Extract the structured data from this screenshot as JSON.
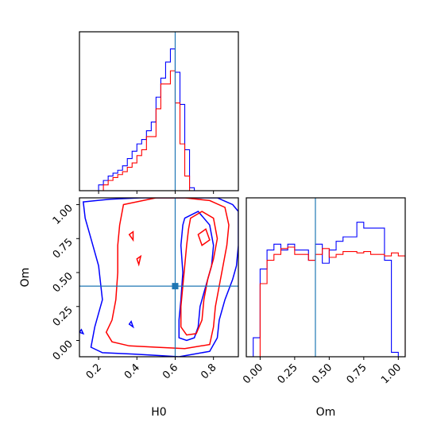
{
  "chart_data": {
    "type": "corner",
    "parameters": [
      "H0",
      "Om"
    ],
    "truth": {
      "H0": 0.6,
      "Om": 0.4
    },
    "colors": {
      "series_blue": "#0000ff",
      "series_red": "#ff0000",
      "truth_line": "#1f77b4",
      "frame": "#000000"
    },
    "x_ticks": {
      "H0": {
        "values": [
          0.2,
          0.4,
          0.6,
          0.8
        ],
        "labels": [
          "0.2",
          "0.4",
          "0.6",
          "0.8"
        ]
      },
      "Om": {
        "values": [
          0.0,
          0.25,
          0.5,
          0.75,
          1.0
        ],
        "labels": [
          "0.00",
          "0.25",
          "0.50",
          "0.75",
          "1.00"
        ]
      }
    },
    "y_ticks": {
      "Om": {
        "values": [
          0.0,
          0.25,
          0.5,
          0.75,
          1.0
        ],
        "labels": [
          "0.00",
          "0.25",
          "0.50",
          "0.75",
          "1.00"
        ]
      }
    },
    "xlabels": {
      "H0": "H0",
      "Om": "Om"
    },
    "ylabels": {
      "Om": "Om"
    },
    "ranges": {
      "H0": [
        0.1,
        0.93
      ],
      "Om": [
        -0.12,
        1.05
      ]
    },
    "charts": [
      {
        "panel": "H0 marginal",
        "type": "step-histogram",
        "xlim": [
          0.1,
          0.93
        ],
        "bin_width": 0.025,
        "series": [
          {
            "color": "#0000ff",
            "edges_start": 0.2,
            "values": [
              0.04,
              0.07,
              0.1,
              0.12,
              0.14,
              0.17,
              0.22,
              0.27,
              0.32,
              0.35,
              0.41,
              0.47,
              0.64,
              0.77,
              0.88,
              0.97,
              0.81,
              0.59,
              0.28,
              0.02
            ]
          },
          {
            "color": "#ff0000",
            "edges_start": 0.225,
            "values": [
              0.04,
              0.07,
              0.09,
              0.11,
              0.13,
              0.16,
              0.19,
              0.24,
              0.28,
              0.37,
              0.37,
              0.56,
              0.73,
              0.73,
              0.82,
              0.6,
              0.32,
              0.1
            ]
          }
        ]
      },
      {
        "panel": "Om marginal",
        "type": "step-histogram",
        "xlim": [
          -0.1,
          1.05
        ],
        "bin_width": 0.05,
        "series": [
          {
            "color": "#0000ff",
            "edges_start": -0.05,
            "values": [
              0.13,
              0.6,
              0.73,
              0.77,
              0.73,
              0.77,
              0.73,
              0.73,
              0.66,
              0.77,
              0.64,
              0.73,
              0.79,
              0.82,
              0.82,
              0.92,
              0.88,
              0.88,
              0.88,
              0.66,
              0.03
            ]
          },
          {
            "color": "#ff0000",
            "edges_start": 0.0,
            "values": [
              0.5,
              0.66,
              0.7,
              0.74,
              0.75,
              0.7,
              0.7,
              0.66,
              0.7,
              0.74,
              0.68,
              0.7,
              0.72,
              0.72,
              0.71,
              0.72,
              0.7,
              0.7,
              0.69,
              0.71,
              0.69
            ]
          }
        ]
      },
      {
        "panel": "H0 vs Om joint",
        "type": "contour",
        "xlim": [
          0.1,
          0.93
        ],
        "ylim": [
          -0.12,
          1.05
        ],
        "series": [
          {
            "color": "#0000ff",
            "contours": [
              [
                [
                  0.12,
                  1.02
                ],
                [
                  0.26,
                  1.04
                ],
                [
                  0.42,
                  1.05
                ],
                [
                  0.58,
                  1.05
                ],
                [
                  0.72,
                  1.05
                ],
                [
                  0.82,
                  1.05
                ],
                [
                  0.9,
                  1.0
                ],
                [
                  0.93,
                  0.95
                ],
                [
                  0.93,
                  0.7
                ],
                [
                  0.92,
                  0.55
                ],
                [
                  0.9,
                  0.45
                ],
                [
                  0.86,
                  0.3
                ],
                [
                  0.83,
                  0.15
                ],
                [
                  0.82,
                  0.02
                ],
                [
                  0.78,
                  -0.08
                ],
                [
                  0.62,
                  -0.12
                ],
                [
                  0.5,
                  -0.11
                ],
                [
                  0.38,
                  -0.1
                ],
                [
                  0.22,
                  -0.09
                ],
                [
                  0.16,
                  -0.05
                ],
                [
                  0.18,
                  0.1
                ],
                [
                  0.22,
                  0.3
                ],
                [
                  0.2,
                  0.55
                ],
                [
                  0.16,
                  0.75
                ],
                [
                  0.13,
                  0.9
                ],
                [
                  0.12,
                  1.02
                ]
              ],
              [
                [
                  0.65,
                  0.9
                ],
                [
                  0.72,
                  0.95
                ],
                [
                  0.78,
                  0.85
                ],
                [
                  0.8,
                  0.7
                ],
                [
                  0.79,
                  0.55
                ],
                [
                  0.76,
                  0.4
                ],
                [
                  0.73,
                  0.25
                ],
                [
                  0.72,
                  0.1
                ],
                [
                  0.7,
                  0.02
                ],
                [
                  0.66,
                  0.0
                ],
                [
                  0.62,
                  0.02
                ],
                [
                  0.62,
                  0.15
                ],
                [
                  0.63,
                  0.3
                ],
                [
                  0.64,
                  0.5
                ],
                [
                  0.63,
                  0.7
                ],
                [
                  0.64,
                  0.85
                ],
                [
                  0.65,
                  0.9
                ]
              ],
              [
                [
                  0.1,
                  0.06
                ],
                [
                  0.12,
                  0.05
                ],
                [
                  0.11,
                  0.08
                ],
                [
                  0.1,
                  0.06
                ]
              ],
              [
                [
                  0.36,
                  0.12
                ],
                [
                  0.38,
                  0.1
                ],
                [
                  0.37,
                  0.14
                ],
                [
                  0.36,
                  0.12
                ]
              ]
            ]
          },
          {
            "color": "#ff0000",
            "contours": [
              [
                [
                  0.33,
                  1.0
                ],
                [
                  0.5,
                  1.05
                ],
                [
                  0.65,
                  1.05
                ],
                [
                  0.78,
                  1.03
                ],
                [
                  0.86,
                  0.98
                ],
                [
                  0.88,
                  0.85
                ],
                [
                  0.87,
                  0.7
                ],
                [
                  0.85,
                  0.55
                ],
                [
                  0.83,
                  0.4
                ],
                [
                  0.81,
                  0.25
                ],
                [
                  0.8,
                  0.1
                ],
                [
                  0.78,
                  -0.03
                ],
                [
                  0.65,
                  -0.06
                ],
                [
                  0.5,
                  -0.05
                ],
                [
                  0.36,
                  -0.04
                ],
                [
                  0.27,
                  -0.01
                ],
                [
                  0.24,
                  0.06
                ],
                [
                  0.27,
                  0.15
                ],
                [
                  0.29,
                  0.3
                ],
                [
                  0.3,
                  0.5
                ],
                [
                  0.3,
                  0.7
                ],
                [
                  0.31,
                  0.85
                ],
                [
                  0.33,
                  1.0
                ]
              ],
              [
                [
                  0.68,
                  0.9
                ],
                [
                  0.74,
                  0.95
                ],
                [
                  0.8,
                  0.9
                ],
                [
                  0.82,
                  0.75
                ],
                [
                  0.8,
                  0.6
                ],
                [
                  0.77,
                  0.45
                ],
                [
                  0.75,
                  0.3
                ],
                [
                  0.74,
                  0.15
                ],
                [
                  0.71,
                  0.05
                ],
                [
                  0.66,
                  0.04
                ],
                [
                  0.63,
                  0.1
                ],
                [
                  0.63,
                  0.25
                ],
                [
                  0.64,
                  0.4
                ],
                [
                  0.65,
                  0.55
                ],
                [
                  0.66,
                  0.7
                ],
                [
                  0.67,
                  0.82
                ],
                [
                  0.68,
                  0.9
                ]
              ],
              [
                [
                  0.72,
                  0.78
                ],
                [
                  0.76,
                  0.82
                ],
                [
                  0.78,
                  0.74
                ],
                [
                  0.74,
                  0.7
                ],
                [
                  0.72,
                  0.78
                ]
              ],
              [
                [
                  0.36,
                  0.78
                ],
                [
                  0.38,
                  0.8
                ],
                [
                  0.38,
                  0.74
                ],
                [
                  0.36,
                  0.78
                ]
              ],
              [
                [
                  0.4,
                  0.6
                ],
                [
                  0.42,
                  0.62
                ],
                [
                  0.41,
                  0.56
                ],
                [
                  0.4,
                  0.6
                ]
              ]
            ]
          }
        ]
      }
    ]
  }
}
